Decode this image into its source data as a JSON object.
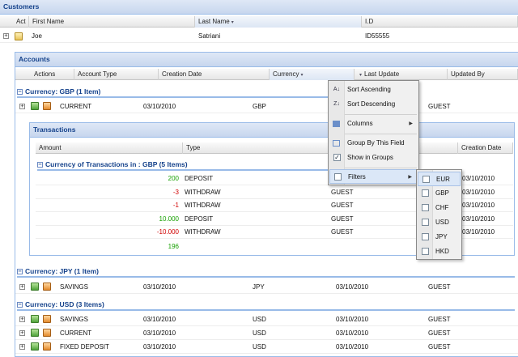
{
  "customers": {
    "title": "Customers",
    "columns": [
      "Act",
      "First Name",
      "Last Name",
      "I.D"
    ],
    "row": {
      "first_name": "Joe",
      "last_name": "Satriani",
      "id": "ID55555"
    }
  },
  "accounts": {
    "title": "Accounts",
    "columns": [
      "Actions",
      "Account Type",
      "Creation Date",
      "Currency",
      "Last Update",
      "Updated By"
    ],
    "groups": [
      {
        "header": "Currency: GBP (1 Item)",
        "rows": [
          {
            "type": "CURRENT",
            "date": "03/10/2010",
            "currency": "GBP",
            "updated_by": "GUEST"
          }
        ]
      },
      {
        "header": "Currency: JPY (1 Item)",
        "rows": [
          {
            "type": "SAVINGS",
            "date": "03/10/2010",
            "currency": "JPY",
            "last_update": "03/10/2010",
            "updated_by": "GUEST"
          }
        ]
      },
      {
        "header": "Currency: USD (3 Items)",
        "rows": [
          {
            "type": "SAVINGS",
            "date": "03/10/2010",
            "currency": "USD",
            "last_update": "03/10/2010",
            "updated_by": "GUEST"
          },
          {
            "type": "CURRENT",
            "date": "03/10/2010",
            "currency": "USD",
            "last_update": "03/10/2010",
            "updated_by": "GUEST"
          },
          {
            "type": "FIXED DEPOSIT",
            "date": "03/10/2010",
            "currency": "USD",
            "last_update": "03/10/2010",
            "updated_by": "GUEST"
          }
        ]
      }
    ]
  },
  "transactions": {
    "title": "Transactions",
    "columns": [
      "Amount",
      "Type",
      "Creation Date"
    ],
    "group_header": "Currency of Transactions in : GBP (5 Items)",
    "rows": [
      {
        "amount": "200",
        "sign": "pos",
        "type": "DEPOSIT",
        "by": "",
        "date": "03/10/2010"
      },
      {
        "amount": "-3",
        "sign": "neg",
        "type": "WITHDRAW",
        "by": "GUEST",
        "date": "03/10/2010"
      },
      {
        "amount": "-1",
        "sign": "neg",
        "type": "WITHDRAW",
        "by": "GUEST",
        "date": "03/10/2010"
      },
      {
        "amount": "10.000",
        "sign": "pos",
        "type": "DEPOSIT",
        "by": "GUEST",
        "date": "03/10/2010"
      },
      {
        "amount": "-10.000",
        "sign": "neg",
        "type": "WITHDRAW",
        "by": "GUEST",
        "date": "03/10/2010"
      }
    ],
    "total": "196"
  },
  "column_menu": {
    "sort_asc": "Sort Ascending",
    "sort_desc": "Sort Descending",
    "columns": "Columns",
    "group_by": "Group By This Field",
    "show_groups": "Show in Groups",
    "filters": "Filters"
  },
  "filter_menu": {
    "options": [
      "EUR",
      "GBP",
      "CHF",
      "USD",
      "JPY",
      "HKD"
    ]
  },
  "colors": {
    "header_text": "#15428b",
    "positive": "#16a000",
    "negative": "#d00000"
  }
}
